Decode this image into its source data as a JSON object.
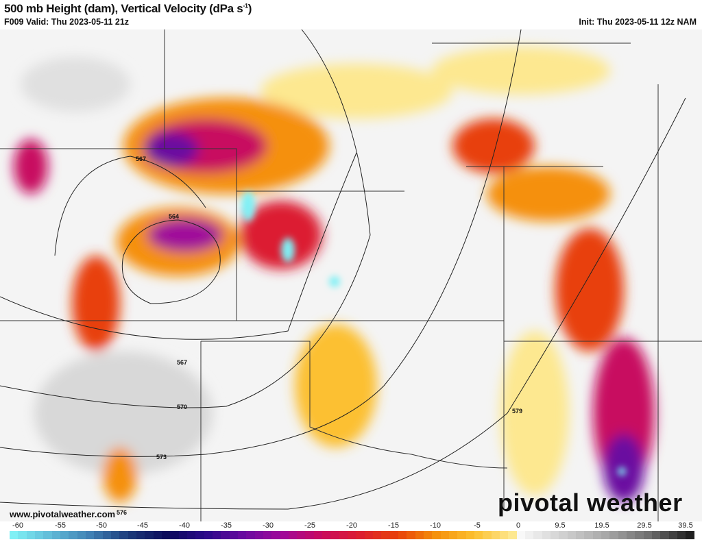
{
  "header": {
    "title": "500 mb Height (dam), Vertical Velocity (dPa s",
    "title_sup": "-1",
    "title_end": ")",
    "valid": "F009 Valid: Thu 2023-05-11 21z",
    "init": "Init: Thu 2023-05-11 12z NAM"
  },
  "contour_labels": [
    "567",
    "564",
    "567",
    "570",
    "573",
    "576",
    "579"
  ],
  "footer": {
    "url": "www.pivotalweather.com",
    "logo": "pivotal weather"
  },
  "colorbar": {
    "ticks": [
      "-60",
      "-55",
      "-50",
      "-45",
      "-40",
      "-35",
      "-30",
      "-25",
      "-20",
      "-15",
      "-10",
      "-5",
      "0",
      "9.5",
      "19.5",
      "29.5",
      "39.5"
    ],
    "stops_negative": [
      "#7ff0f5",
      "#5fb8d6",
      "#3f7fb3",
      "#1c3a7a",
      "#0a0a5a",
      "#2a0a8a",
      "#6a0aa0",
      "#a0089a",
      "#c80a60",
      "#dc1e30",
      "#e8400a",
      "#f5900a",
      "#fcc030",
      "#fde890"
    ],
    "stops_positive": [
      "#f8f8f8",
      "#d0d0d0",
      "#a8a8a8",
      "#707070",
      "#202020"
    ]
  }
}
